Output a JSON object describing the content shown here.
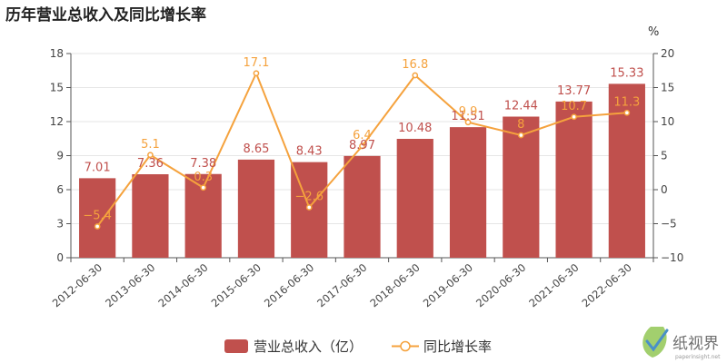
{
  "chart_data": {
    "type": "bar",
    "title": "历年营业总收入及同比增长率",
    "categories": [
      "2012-06-30",
      "2013-06-30",
      "2014-06-30",
      "2015-06-30",
      "2016-06-30",
      "2017-06-30",
      "2018-06-30",
      "2019-06-30",
      "2020-06-30",
      "2021-06-30",
      "2022-06-30"
    ],
    "series": [
      {
        "name": "营业总收入（亿）",
        "type": "bar",
        "axis": "left",
        "color": "#c0504d",
        "values": [
          7.01,
          7.36,
          7.38,
          8.65,
          8.43,
          8.97,
          10.48,
          11.51,
          12.44,
          13.77,
          15.33
        ],
        "labels": [
          "7.01",
          "7.36",
          "7.38",
          "8.65",
          "8.43",
          "8.97",
          "10.48",
          "11.51",
          "12.44",
          "13.77",
          "15.33"
        ]
      },
      {
        "name": "同比增长率",
        "type": "line",
        "axis": "right",
        "color": "#f5a23d",
        "values": [
          -5.4,
          5.1,
          0.3,
          17.1,
          -2.6,
          6.4,
          16.8,
          9.9,
          8,
          10.7,
          11.3
        ],
        "labels": [
          "−5.4",
          "5.1",
          "0.3",
          "17.1",
          "−2.6",
          "6.4",
          "16.8",
          "9.9",
          "8",
          "10.7",
          "11.3"
        ]
      }
    ],
    "y_left": {
      "ylim": [
        0,
        18
      ],
      "ticks": [
        "0",
        "3",
        "6",
        "9",
        "12",
        "15",
        "18"
      ]
    },
    "y_right": {
      "ylim": [
        -10,
        20
      ],
      "ticks": [
        "−10",
        "−5",
        "0",
        "5",
        "10",
        "15",
        "20"
      ],
      "unit": "%"
    },
    "grid": true,
    "legend": "bottom-center"
  },
  "watermark": {
    "text": "纸视界",
    "sub": "paperinsight.net"
  }
}
